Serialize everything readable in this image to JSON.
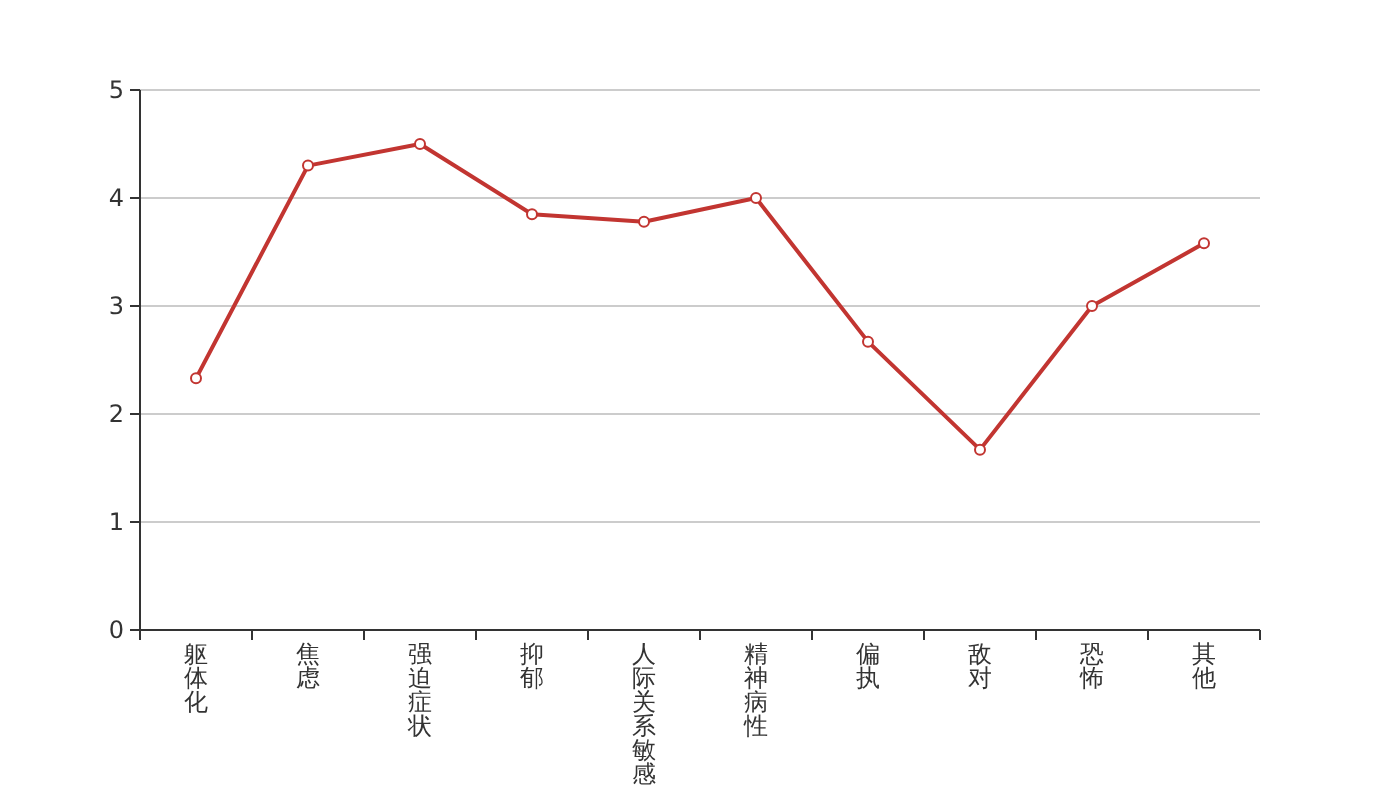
{
  "chart_data": {
    "type": "line",
    "categories": [
      "躯体化",
      "焦虑",
      "强迫症状",
      "抑郁",
      "人际关系敏感",
      "精神病性",
      "偏执",
      "敌对",
      "恐怖",
      "其他"
    ],
    "series": [
      {
        "color": "#c23531",
        "values": [
          2.33,
          4.3,
          4.5,
          3.85,
          3.78,
          4.0,
          2.67,
          1.67,
          3.0,
          3.58
        ]
      }
    ],
    "ylim": [
      0,
      5
    ],
    "yticks": [
      0,
      1,
      2,
      3,
      4,
      5
    ],
    "grid": "y",
    "marker": "circle"
  }
}
